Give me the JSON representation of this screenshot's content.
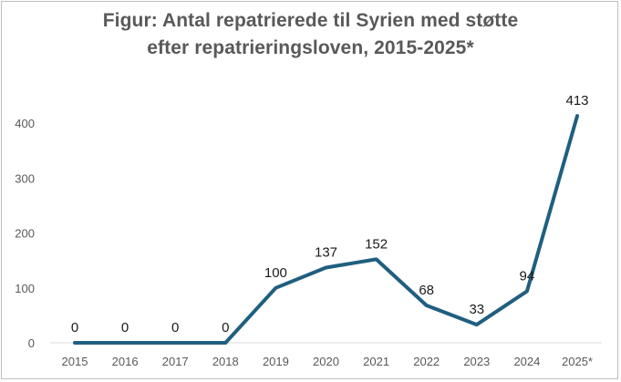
{
  "chart_data": {
    "type": "line",
    "title_line1": "Figur: Antal repatrierede til Syrien med støtte",
    "title_line2": "efter repatrieringsloven, 2015-2025*",
    "categories": [
      "2015",
      "2016",
      "2017",
      "2018",
      "2019",
      "2020",
      "2021",
      "2022",
      "2023",
      "2024",
      "2025*"
    ],
    "values": [
      0,
      0,
      0,
      0,
      100,
      137,
      152,
      68,
      33,
      94,
      413
    ],
    "data_labels": [
      "0",
      "0",
      "0",
      "0",
      "100",
      "137",
      "152",
      "68",
      "33",
      "94",
      "413"
    ],
    "y_ticks": [
      "0",
      "100",
      "200",
      "300",
      "400"
    ],
    "ylim": [
      0,
      450
    ],
    "grid": false,
    "legend": "none",
    "xlabel": "",
    "ylabel": "",
    "colors": {
      "line": "#1f5f7f",
      "axis": "#d9d9d9",
      "text": "#595959"
    }
  }
}
